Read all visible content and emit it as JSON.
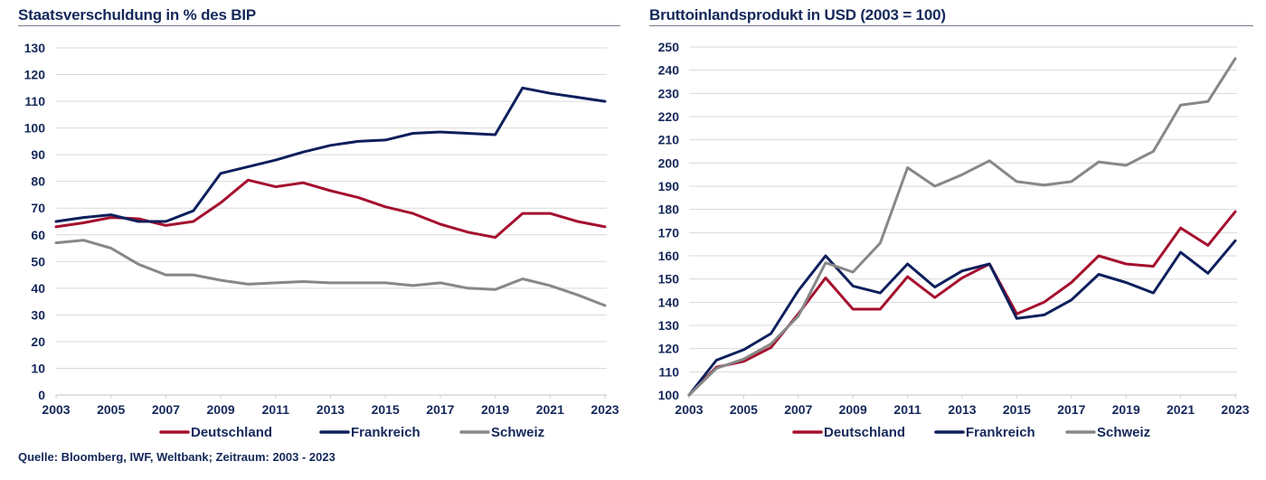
{
  "source_note": "Quelle: Bloomberg, IWF, Weltbank; Zeitraum: 2003 - 2023",
  "colors": {
    "Deutschland": "#a5102f",
    "Frankreich": "#0d1f5c",
    "Schweiz": "#878787",
    "grid": "#d9d9d9",
    "text": "#14285a"
  },
  "chart_data": [
    {
      "type": "line",
      "title": "Staatsverschuldung in % des BIP",
      "xlabel": "",
      "ylabel": "",
      "x": [
        2003,
        2004,
        2005,
        2006,
        2007,
        2008,
        2009,
        2010,
        2011,
        2012,
        2013,
        2014,
        2015,
        2016,
        2017,
        2018,
        2019,
        2020,
        2021,
        2022,
        2023
      ],
      "x_tick_labels": [
        "2003",
        "2005",
        "2007",
        "2009",
        "2011",
        "2013",
        "2015",
        "2017",
        "2019",
        "2021",
        "2023"
      ],
      "y_tick_labels": [
        "0",
        "10",
        "20",
        "30",
        "40",
        "50",
        "60",
        "70",
        "80",
        "90",
        "100",
        "110",
        "120",
        "130"
      ],
      "ylim": [
        0,
        130
      ],
      "y_step": 10,
      "grid": true,
      "legend_position": "bottom",
      "series": [
        {
          "name": "Deutschland",
          "values": [
            63,
            64.5,
            66.5,
            66,
            63.5,
            65,
            72,
            80.5,
            78,
            79.5,
            76.5,
            74,
            70.5,
            68,
            64,
            61,
            59,
            68,
            68,
            65,
            63
          ]
        },
        {
          "name": "Frankreich",
          "values": [
            65,
            66.5,
            67.5,
            65,
            65,
            69,
            83,
            85.5,
            88,
            91,
            93.5,
            95,
            95.5,
            98,
            98.5,
            98,
            97.5,
            115,
            113,
            111.5,
            110
          ]
        },
        {
          "name": "Schweiz",
          "values": [
            57,
            58,
            55,
            49,
            45,
            45,
            43,
            41.5,
            42,
            42.5,
            42,
            42,
            42,
            41,
            42,
            40,
            39.5,
            43.5,
            41,
            37.5,
            33.5
          ]
        }
      ]
    },
    {
      "type": "line",
      "title": "Bruttoinlandsprodukt in USD (2003 = 100)",
      "xlabel": "",
      "ylabel": "",
      "x": [
        2003,
        2004,
        2005,
        2006,
        2007,
        2008,
        2009,
        2010,
        2011,
        2012,
        2013,
        2014,
        2015,
        2016,
        2017,
        2018,
        2019,
        2020,
        2021,
        2022,
        2023
      ],
      "x_tick_labels": [
        "2003",
        "2005",
        "2007",
        "2009",
        "2011",
        "2013",
        "2015",
        "2017",
        "2019",
        "2021",
        "2023"
      ],
      "y_tick_labels": [
        "100",
        "110",
        "120",
        "130",
        "140",
        "150",
        "160",
        "170",
        "180",
        "190",
        "200",
        "210",
        "220",
        "230",
        "240",
        "250"
      ],
      "ylim": [
        100,
        250
      ],
      "y_step": 10,
      "grid": true,
      "legend_position": "bottom",
      "series": [
        {
          "name": "Deutschland",
          "values": [
            100,
            112,
            114.5,
            120.5,
            135,
            150.5,
            137,
            137,
            151,
            142,
            150.5,
            156.5,
            135,
            140,
            148.5,
            160,
            156.5,
            155.5,
            172,
            164.5,
            179
          ]
        },
        {
          "name": "Frankreich",
          "values": [
            100,
            115,
            119.5,
            126.5,
            145,
            160,
            147,
            144,
            156.5,
            146.5,
            153.5,
            156.5,
            133,
            134.5,
            141,
            152,
            148.5,
            144,
            161.5,
            152.5,
            166.5
          ]
        },
        {
          "name": "Schweiz",
          "values": [
            100,
            111.5,
            115.5,
            122,
            134,
            157,
            153,
            165.5,
            198,
            190,
            195,
            201,
            192,
            190.5,
            192,
            200.5,
            199,
            205,
            225,
            226.5,
            245
          ]
        }
      ]
    }
  ]
}
